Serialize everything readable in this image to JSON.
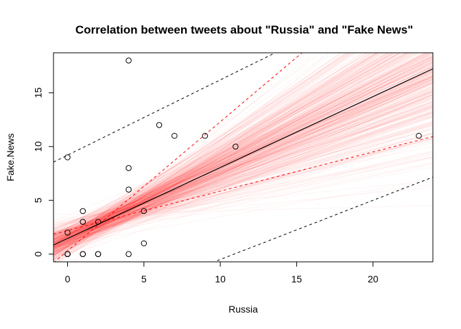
{
  "chart_data": {
    "type": "scatter",
    "title": "Correlation between tweets about \"Russia\" and \"Fake News\"",
    "xlabel": "Russia",
    "ylabel": "Fake.News",
    "xlim": [
      -0.92,
      23.92
    ],
    "ylim": [
      -0.72,
      18.72
    ],
    "x_ticks": [
      0,
      5,
      10,
      15,
      20
    ],
    "y_ticks": [
      0,
      5,
      10,
      15
    ],
    "grid": false,
    "points": [
      {
        "x": 0,
        "y": 0
      },
      {
        "x": 0,
        "y": 0
      },
      {
        "x": 0,
        "y": 0
      },
      {
        "x": 0,
        "y": 2
      },
      {
        "x": 0,
        "y": 9
      },
      {
        "x": 1,
        "y": 0
      },
      {
        "x": 1,
        "y": 0
      },
      {
        "x": 1,
        "y": 3
      },
      {
        "x": 1,
        "y": 3
      },
      {
        "x": 1,
        "y": 4
      },
      {
        "x": 2,
        "y": 0
      },
      {
        "x": 2,
        "y": 0
      },
      {
        "x": 2,
        "y": 3
      },
      {
        "x": 4,
        "y": 0
      },
      {
        "x": 4,
        "y": 6
      },
      {
        "x": 4,
        "y": 8
      },
      {
        "x": 4,
        "y": 18
      },
      {
        "x": 5,
        "y": 1
      },
      {
        "x": 5,
        "y": 4
      },
      {
        "x": 6,
        "y": 12
      },
      {
        "x": 7,
        "y": 11
      },
      {
        "x": 9,
        "y": 11
      },
      {
        "x": 11,
        "y": 10
      },
      {
        "x": 23,
        "y": 11
      }
    ],
    "fit_line": {
      "intercept": 1.45,
      "slope": 0.66,
      "color": "#000000"
    },
    "confidence_band": {
      "color": "#ff0000",
      "lower": {
        "intercept": 2.2,
        "slope": 0.365
      },
      "upper": {
        "intercept": 0.3,
        "slope": 1.2
      }
    },
    "prediction_band": {
      "color": "#000000",
      "lower": {
        "intercept": -6.0,
        "slope": 0.55
      },
      "upper": {
        "intercept": 9.2,
        "slope": 0.7
      }
    },
    "posterior_lines": {
      "count": 500,
      "color": "#ff0000",
      "intercept_mean": 1.45,
      "intercept_sd": 0.75,
      "slope_mean": 0.66,
      "slope_sd": 0.18,
      "correlation": -0.6
    }
  }
}
